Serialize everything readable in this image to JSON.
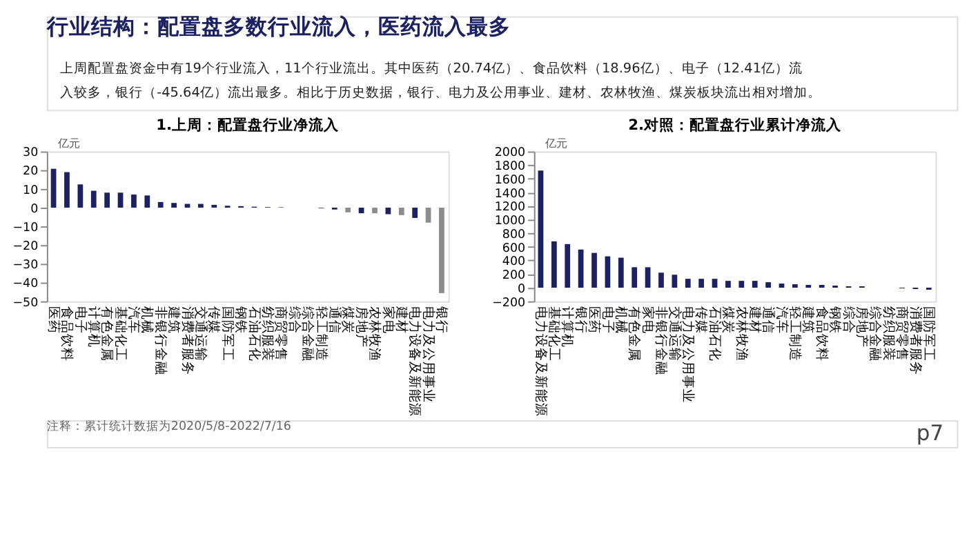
{
  "chart_data": [
    {
      "type": "other",
      "title": "行业结构：配置盘多数行业流入，医药流入最多",
      "annotations": [
        "上周配置盘资金中有19个行业流入，11个行业流出。其中医药（20.74亿）、食品饮料（18.96亿）、电子（12.41亿）流入较多，银行（-45.64亿）流出最多。相比于历史数据，银行、电力及公用事业、建材、农林牧渔、煤炭板块流出相对增加。",
        "注释：累计统计数据为2020/5/8-2022/7/16",
        "p7"
      ]
    },
    {
      "type": "bar",
      "title": "1.上周：配置盘行业净流入",
      "ylabel": "亿元",
      "categories": [
        "医药",
        "食品饮料",
        "电子",
        "计算机",
        "有色金属",
        "基础化工",
        "汽车",
        "机械",
        "非银行金融",
        "建筑",
        "消费者服务",
        "交通运输",
        "传媒",
        "国防军工",
        "钢铁",
        "石油石化",
        "纺织服装",
        "商贸零售",
        "综合",
        "综合金融",
        "轻工制造",
        "通信",
        "煤炭",
        "房地产",
        "农林牧渔",
        "家电",
        "建材",
        "电力设备及新能源",
        "电力及公用事业",
        "银行"
      ],
      "values": [
        20.74,
        18.96,
        12.41,
        9,
        8,
        8,
        7,
        6.5,
        3,
        2.5,
        2,
        2,
        1.5,
        1,
        0.8,
        0.5,
        0.3,
        0.2,
        null,
        null,
        -0.3,
        -1,
        -2.5,
        -3,
        -3,
        -3.5,
        -4,
        -5.5,
        -8,
        -45.64
      ],
      "colors": [
        "#1b2161",
        "#1b2161",
        "#1b2161",
        "#1b2161",
        "#1b2161",
        "#1b2161",
        "#1b2161",
        "#1b2161",
        "#1b2161",
        "#1b2161",
        "#1b2161",
        "#1b2161",
        "#1b2161",
        "#1b2161",
        "#1b2161",
        "#1b2161",
        "#1b2161",
        "#1b2161",
        "#1b2161",
        "#1b2161",
        "#1b2161",
        "#1b2161",
        "#8c8c8c",
        "#1b2161",
        "#8c8c8c",
        "#1b2161",
        "#8c8c8c",
        "#1b2161",
        "#8c8c8c",
        "#8c8c8c"
      ],
      "ylim": [
        -50,
        30
      ],
      "yticks": [
        -50,
        -40,
        -30,
        -20,
        -10,
        0,
        10,
        20,
        30
      ],
      "grid": false
    },
    {
      "type": "bar",
      "title": "2.对照：配置盘行业累计净流入",
      "ylabel": "亿元",
      "categories": [
        "电力设备及新能源",
        "基础化工",
        "计算机",
        "银行",
        "医药",
        "电子",
        "机械",
        "有色金属",
        "家电",
        "非银行金融",
        "交通运输",
        "电力及公用事业",
        "传媒",
        "石油石化",
        "煤炭",
        "农林牧渔",
        "建材",
        "通信",
        "汽车",
        "轻工制造",
        "建筑",
        "食品饮料",
        "钢铁",
        "综合",
        "房地产",
        "综合金融",
        "纺织服装",
        "商贸零售",
        "消费者服务",
        "国防军工"
      ],
      "values": [
        1720,
        680,
        640,
        560,
        510,
        460,
        440,
        300,
        300,
        220,
        190,
        130,
        130,
        130,
        100,
        100,
        100,
        80,
        60,
        50,
        40,
        40,
        30,
        20,
        20,
        null,
        null,
        -10,
        -20,
        -30
      ],
      "color": "#1b2161",
      "ylim": [
        -200,
        2000
      ],
      "yticks": [
        -200,
        0,
        200,
        400,
        600,
        800,
        1000,
        1200,
        1400,
        1600,
        1800,
        2000
      ],
      "grid": false
    }
  ]
}
